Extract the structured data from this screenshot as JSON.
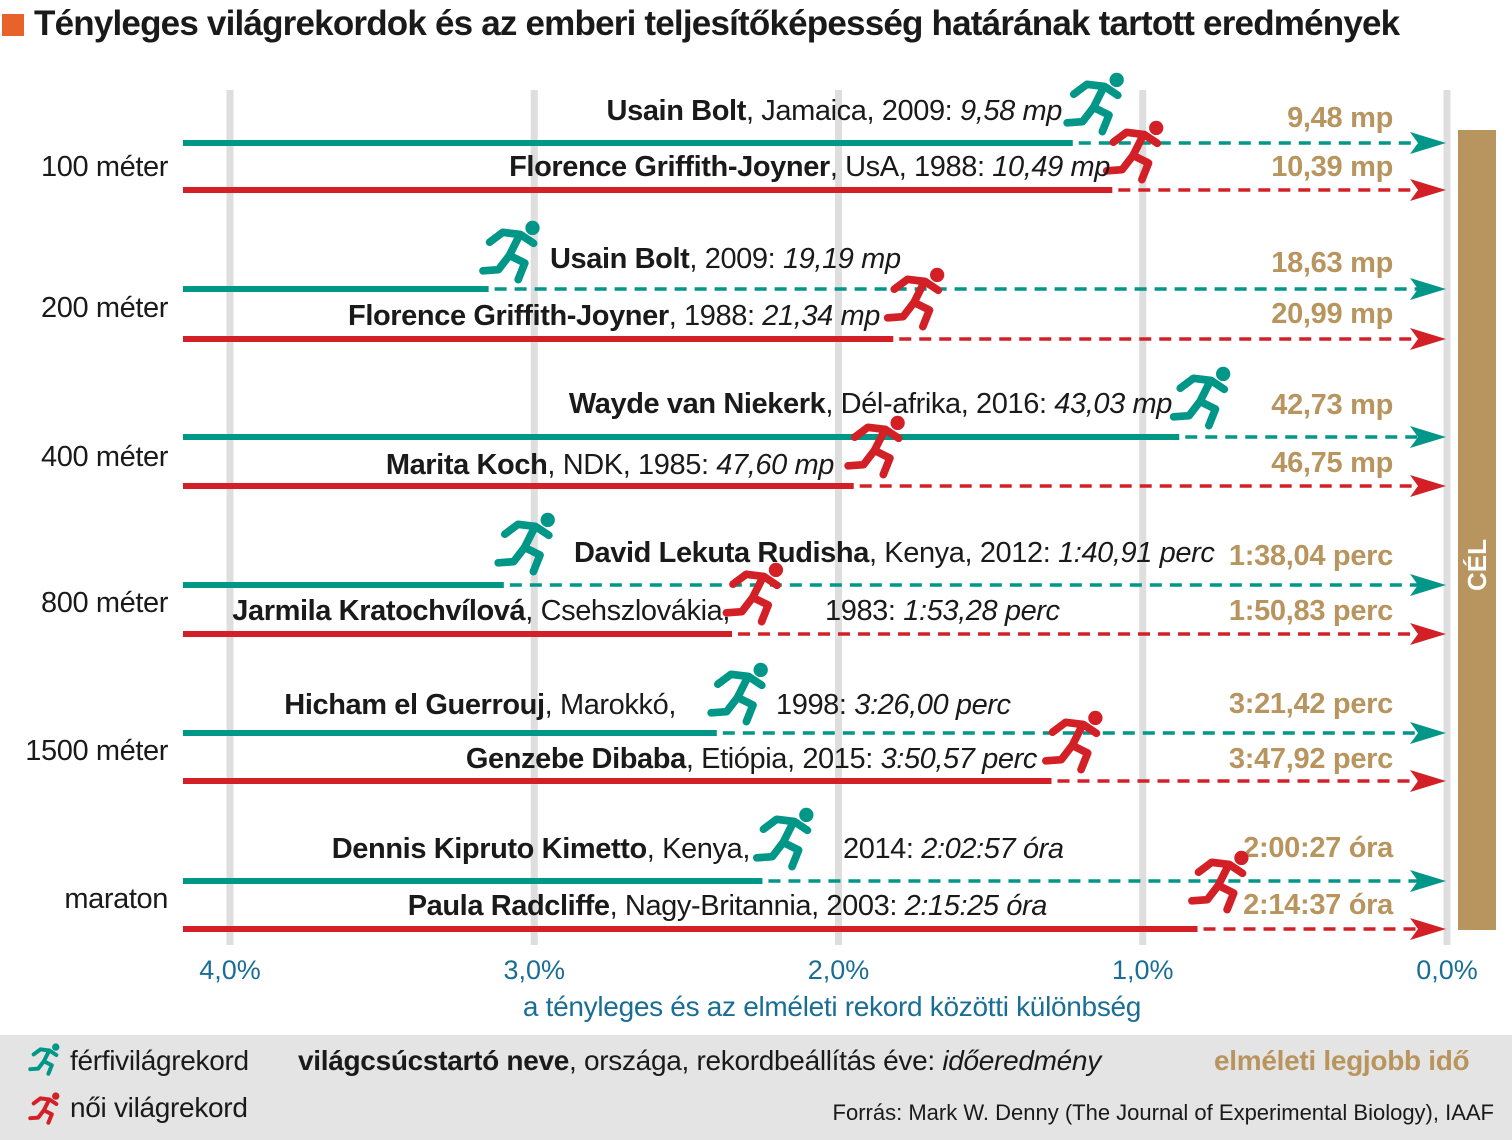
{
  "title": "Tényleges világrekordok és az emberi teljesítőképesség határának tartott eredmények",
  "colors": {
    "men": "#009688",
    "women": "#d32027",
    "goal": "#b8955e",
    "axis": "#1a6e96",
    "accent": "#e8632a"
  },
  "icons": {
    "men": "runner-icon",
    "women": "runner-icon"
  },
  "chart_data": {
    "type": "bar",
    "orientation": "horizontal",
    "x_axis": {
      "label": "a tényleges és az elméleti rekord közötti különbség",
      "ticks": [
        "4,0%",
        "3,0%",
        "2,0%",
        "1,0%",
        "0,0%"
      ],
      "tick_values": [
        4,
        3,
        2,
        1,
        0
      ],
      "range": [
        4.15,
        0
      ],
      "reversed": true,
      "grid": true
    },
    "goal_label": "CÉL",
    "categories": [
      "100 méter",
      "200 méter",
      "400 méter",
      "800 méter",
      "1500 méter",
      "maraton"
    ],
    "series_names": {
      "men": "férfivilágrekord",
      "women": "női világrekord"
    },
    "rows": [
      {
        "event": "100 méter",
        "men": {
          "name": "Usain Bolt",
          "rest": ", Jamaica, 2009: ",
          "time": "9,58 mp",
          "theory": "9,48 mp",
          "gap": 1.23
        },
        "women": {
          "name": "Florence Griffith-Joyner",
          "rest": ", UsA, 1988: ",
          "time": "10,49 mp",
          "theory": "10,39 mp",
          "gap": 1.1
        }
      },
      {
        "event": "200 méter",
        "men": {
          "name": "Usain Bolt",
          "rest": ", 2009: ",
          "time": "19,19 mp",
          "theory": "18,63 mp",
          "gap": 3.15
        },
        "women": {
          "name": "Florence Griffith-Joyner",
          "rest": ", 1988: ",
          "time": "21,34 mp",
          "theory": "20,99 mp",
          "gap": 1.82
        }
      },
      {
        "event": "400 méter",
        "men": {
          "name": "Wayde van Niekerk",
          "rest": ", Dél-afrika, 2016: ",
          "time": "43,03 mp",
          "theory": "42,73 mp",
          "gap": 0.88
        },
        "women": {
          "name": "Marita Koch",
          "rest": ", NDK, 1985: ",
          "time": "47,60 mp",
          "theory": "46,75 mp",
          "gap": 1.95
        }
      },
      {
        "event": "800 méter",
        "men": {
          "name": "David Lekuta Rudisha",
          "rest": ", Kenya, 2012: ",
          "time": "1:40,91 perc",
          "theory": "1:38,04 perc",
          "gap": 3.1
        },
        "women": {
          "name": "Jarmila Kratochvílová",
          "rest": ", Csehszlovákia, 1983: ",
          "time": "1:53,28 perc",
          "theory": "1:50,83 perc",
          "gap": 2.35
        }
      },
      {
        "event": "1500 méter",
        "men": {
          "name": "Hicham el Guerrouj",
          "rest": ", Marokkó, 1998: ",
          "time": "3:26,00 perc",
          "theory": "3:21,42 perc",
          "gap": 2.4
        },
        "women": {
          "name": "Genzebe Dibaba",
          "rest": ", Etiópia, 2015: ",
          "time": "3:50,57 perc",
          "theory": "3:47,92 perc",
          "gap": 1.3
        }
      },
      {
        "event": "maraton",
        "men": {
          "name": "Dennis Kipruto Kimetto",
          "rest": ", Kenya, 2014: ",
          "time": "2:02:57 óra",
          "theory": "2:00:27 óra",
          "gap": 2.25
        },
        "women": {
          "name": "Paula Radcliffe",
          "rest": ", Nagy-Britannia, 2003: ",
          "time": "2:15:25 óra",
          "theory": "2:14:37 óra",
          "gap": 0.82
        }
      }
    ]
  },
  "legend": {
    "men_label": "férfivilágrekord",
    "women_label": "női világrekord",
    "format_name": "világcsúcstartó neve",
    "format_rest": ", országa, rekordbeállítás éve: ",
    "format_time": "időeredmény",
    "theory_label": "elméleti legjobb idő",
    "source": "Forrás: Mark W. Denny (The Journal of Experimental Biology), IAAF"
  }
}
